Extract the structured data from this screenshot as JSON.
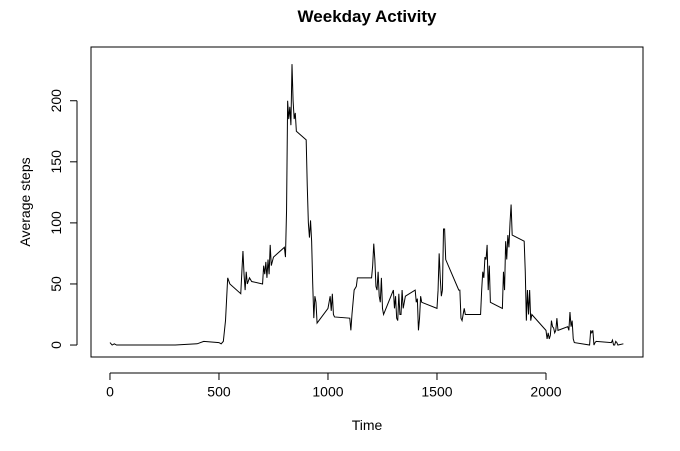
{
  "chart_data": {
    "type": "line",
    "title": "Weekday Activity",
    "x_label": "Time",
    "y_label": "Average steps",
    "color": "#000000",
    "x": [
      0,
      10,
      20,
      30,
      100,
      200,
      300,
      400,
      430,
      500,
      510,
      520,
      530,
      540,
      550,
      600,
      605,
      610,
      615,
      620,
      625,
      630,
      640,
      650,
      700,
      705,
      710,
      715,
      720,
      725,
      730,
      735,
      740,
      750,
      800,
      805,
      810,
      815,
      820,
      825,
      830,
      835,
      840,
      845,
      850,
      855,
      900,
      905,
      910,
      915,
      920,
      925,
      930,
      935,
      940,
      945,
      950,
      1000,
      1005,
      1010,
      1015,
      1020,
      1025,
      1030,
      1100,
      1105,
      1110,
      1115,
      1120,
      1130,
      1135,
      1200,
      1205,
      1210,
      1215,
      1220,
      1225,
      1230,
      1235,
      1240,
      1245,
      1250,
      1255,
      1300,
      1305,
      1310,
      1315,
      1320,
      1325,
      1330,
      1335,
      1340,
      1345,
      1350,
      1355,
      1400,
      1405,
      1410,
      1415,
      1420,
      1425,
      1430,
      1500,
      1505,
      1510,
      1515,
      1520,
      1525,
      1530,
      1535,
      1540,
      1600,
      1605,
      1610,
      1615,
      1620,
      1625,
      1630,
      1700,
      1705,
      1710,
      1715,
      1720,
      1725,
      1730,
      1735,
      1740,
      1745,
      1800,
      1805,
      1810,
      1815,
      1820,
      1825,
      1830,
      1835,
      1840,
      1845,
      1900,
      1905,
      1910,
      1915,
      1920,
      1925,
      1930,
      1935,
      2000,
      2005,
      2010,
      2015,
      2020,
      2025,
      2030,
      2035,
      2040,
      2045,
      2050,
      2055,
      2100,
      2105,
      2110,
      2115,
      2120,
      2125,
      2130,
      2200,
      2205,
      2210,
      2215,
      2220,
      2225,
      2230,
      2300,
      2305,
      2310,
      2315,
      2320,
      2325,
      2330,
      2355
    ],
    "values": [
      2,
      0,
      1,
      0,
      0,
      0,
      0,
      1,
      3,
      2,
      1,
      3,
      20,
      55,
      50,
      42,
      60,
      77,
      58,
      45,
      60,
      50,
      55,
      52,
      50,
      65,
      58,
      68,
      55,
      70,
      58,
      82,
      65,
      72,
      80,
      72,
      110,
      200,
      185,
      195,
      180,
      230,
      200,
      185,
      190,
      175,
      168,
      130,
      100,
      88,
      102,
      85,
      50,
      22,
      40,
      35,
      18,
      30,
      35,
      40,
      28,
      42,
      25,
      23,
      22,
      12,
      25,
      35,
      45,
      48,
      55,
      55,
      65,
      83,
      70,
      48,
      45,
      60,
      40,
      35,
      55,
      30,
      25,
      45,
      30,
      40,
      22,
      20,
      42,
      25,
      25,
      45,
      30,
      35,
      40,
      45,
      35,
      38,
      12,
      22,
      40,
      35,
      30,
      45,
      75,
      55,
      40,
      45,
      95,
      95,
      70,
      45,
      45,
      22,
      20,
      25,
      30,
      25,
      25,
      45,
      60,
      55,
      72,
      70,
      82,
      45,
      65,
      35,
      30,
      60,
      45,
      85,
      70,
      90,
      80,
      100,
      115,
      90,
      85,
      60,
      20,
      45,
      25,
      45,
      20,
      25,
      12,
      5,
      10,
      5,
      8,
      20,
      15,
      14,
      10,
      12,
      22,
      12,
      15,
      12,
      27,
      15,
      20,
      5,
      2,
      0,
      12,
      10,
      12,
      0,
      2,
      3,
      2,
      4,
      0,
      0,
      3,
      2,
      0,
      1
    ],
    "xlim": [
      -87,
      2445
    ],
    "ylim": [
      -9.8,
      244
    ],
    "xticks": [
      0,
      500,
      1000,
      1500,
      2000
    ],
    "yticks": [
      0,
      50,
      100,
      150,
      200
    ]
  }
}
